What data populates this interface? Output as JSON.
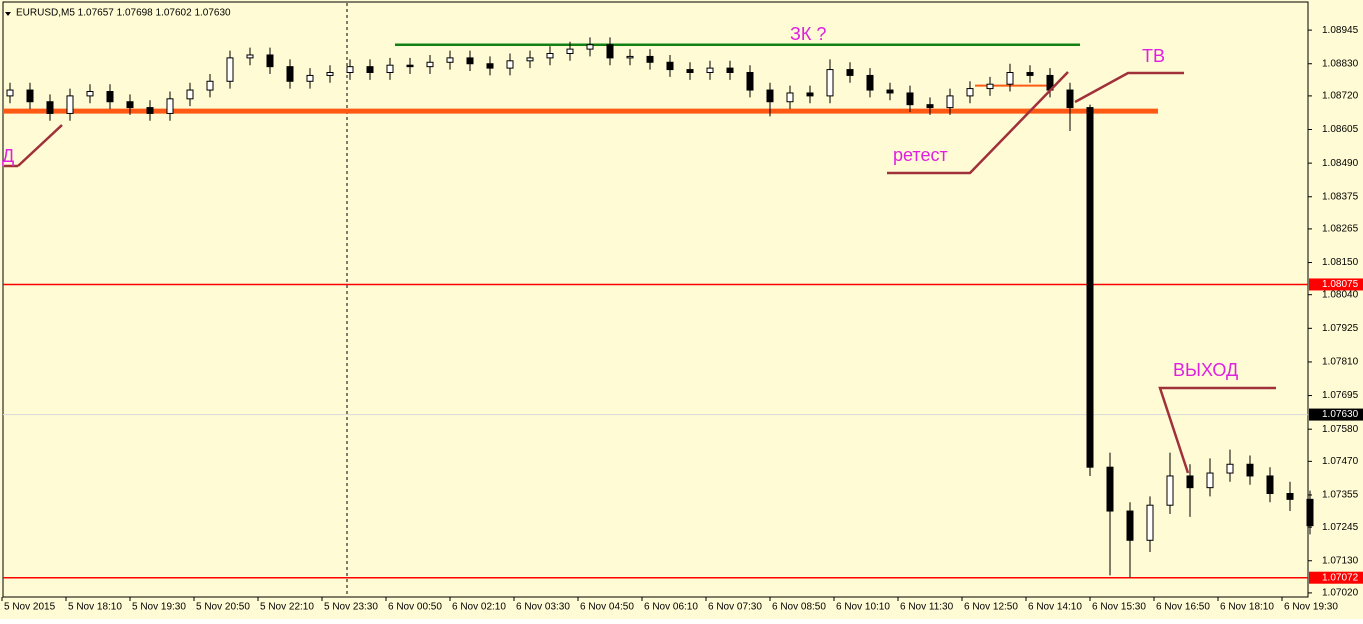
{
  "chart_data": {
    "type": "candlestick",
    "title": "EURUSD,M5  1.07657 1.07698 1.07602 1.07630",
    "x_labels": [
      "5 Nov 2015",
      "5 Nov 18:10",
      "5 Nov 19:30",
      "5 Nov 20:50",
      "5 Nov 22:10",
      "5 Nov 23:30",
      "6 Nov 00:50",
      "6 Nov 02:10",
      "6 Nov 03:30",
      "6 Nov 04:50",
      "6 Nov 06:10",
      "6 Nov 07:30",
      "6 Nov 08:50",
      "6 Nov 10:10",
      "6 Nov 11:30",
      "6 Nov 12:50",
      "6 Nov 14:10",
      "6 Nov 15:30",
      "6 Nov 16:50",
      "6 Nov 18:10",
      "6 Nov 19:30"
    ],
    "open": [
      1.0872,
      1.0874,
      1.087,
      1.0866,
      1.0872,
      1.08735,
      1.087,
      1.0868,
      1.0866,
      1.0871,
      1.0874,
      1.0877,
      1.0885,
      1.0886,
      1.0882,
      1.0877,
      1.0879,
      1.088,
      1.0882,
      1.088,
      1.08825,
      1.0882,
      1.08835,
      1.0885,
      1.0883,
      1.08815,
      1.0884,
      1.0885,
      1.08865,
      1.0888,
      1.08895,
      1.0885,
      1.08855,
      1.08835,
      1.0881,
      1.088,
      1.08815,
      1.088,
      1.0874,
      1.087,
      1.0873,
      1.0872,
      1.0881,
      1.0879,
      1.0874,
      1.0873,
      1.0869,
      1.0868,
      1.0872,
      1.08745,
      1.0876,
      1.088,
      1.0879,
      1.0874,
      1.0868,
      1.0745,
      1.073,
      1.072,
      1.0732,
      1.0742,
      1.0738,
      1.0743,
      1.0746,
      1.0742,
      1.0736,
      1.0734
    ],
    "high": [
      1.08765,
      1.08765,
      1.08725,
      1.08745,
      1.0876,
      1.0876,
      1.08725,
      1.08705,
      1.08735,
      1.08765,
      1.08795,
      1.08875,
      1.08885,
      1.08885,
      1.08845,
      1.08815,
      1.08825,
      1.08845,
      1.08845,
      1.0885,
      1.0885,
      1.0886,
      1.08875,
      1.08875,
      1.08855,
      1.08865,
      1.08875,
      1.0889,
      1.08905,
      1.0892,
      1.0892,
      1.0888,
      1.0888,
      1.0886,
      1.08835,
      1.0884,
      1.0884,
      1.08825,
      1.08765,
      1.08755,
      1.08755,
      1.08845,
      1.08835,
      1.08815,
      1.08765,
      1.08755,
      1.08715,
      1.08745,
      1.0877,
      1.08785,
      1.0883,
      1.08825,
      1.08815,
      1.08765,
      1.0869,
      1.075,
      1.0733,
      1.0735,
      1.075,
      1.0746,
      1.0748,
      1.0751,
      1.0749,
      1.0745,
      1.074,
      1.0737
    ],
    "low": [
      1.08695,
      1.08675,
      1.08635,
      1.08635,
      1.08695,
      1.08675,
      1.08655,
      1.08635,
      1.08635,
      1.08685,
      1.08715,
      1.08745,
      1.08825,
      1.08795,
      1.08745,
      1.08745,
      1.08765,
      1.08775,
      1.08775,
      1.08775,
      1.08795,
      1.08795,
      1.0881,
      1.08805,
      1.0879,
      1.0879,
      1.08815,
      1.08825,
      1.0884,
      1.08855,
      1.08825,
      1.08825,
      1.0881,
      1.08785,
      1.08775,
      1.08775,
      1.08775,
      1.08715,
      1.0865,
      1.08675,
      1.08695,
      1.08695,
      1.08765,
      1.08715,
      1.08705,
      1.08665,
      1.08655,
      1.08655,
      1.08695,
      1.0872,
      1.08735,
      1.08765,
      1.08715,
      1.086,
      1.0742,
      1.0708,
      1.07072,
      1.0716,
      1.0729,
      1.0728,
      1.0735,
      1.074,
      1.0739,
      1.0733,
      1.073,
      1.0722
    ],
    "close": [
      1.0874,
      1.087,
      1.0866,
      1.0872,
      1.08735,
      1.087,
      1.0868,
      1.0866,
      1.0871,
      1.0874,
      1.0877,
      1.0885,
      1.0886,
      1.0882,
      1.0877,
      1.0879,
      1.088,
      1.0882,
      1.088,
      1.08825,
      1.0882,
      1.08835,
      1.0885,
      1.0883,
      1.08815,
      1.0884,
      1.0885,
      1.08865,
      1.0888,
      1.08895,
      1.0885,
      1.08855,
      1.08835,
      1.0881,
      1.088,
      1.08815,
      1.088,
      1.0874,
      1.087,
      1.0873,
      1.0872,
      1.0881,
      1.0879,
      1.0874,
      1.0873,
      1.0869,
      1.0868,
      1.0872,
      1.08745,
      1.0876,
      1.088,
      1.0879,
      1.0874,
      1.0868,
      1.0745,
      1.073,
      1.072,
      1.0732,
      1.0742,
      1.0738,
      1.0743,
      1.0746,
      1.0742,
      1.0736,
      1.0734,
      1.0725
    ],
    "ylim": [
      1.07006,
      1.09048
    ],
    "yticks": [
      {
        "value": 1.08945,
        "label": "1.08945"
      },
      {
        "value": 1.0883,
        "label": "1.08830"
      },
      {
        "value": 1.0872,
        "label": "1.08720"
      },
      {
        "value": 1.08605,
        "label": "1.08605"
      },
      {
        "value": 1.0849,
        "label": "1.08490"
      },
      {
        "value": 1.08375,
        "label": "1.08375"
      },
      {
        "value": 1.08265,
        "label": "1.08265"
      },
      {
        "value": 1.0815,
        "label": "1.08150"
      },
      {
        "value": 1.0804,
        "label": "1.08040"
      },
      {
        "value": 1.07925,
        "label": "1.07925"
      },
      {
        "value": 1.0781,
        "label": "1.07810"
      },
      {
        "value": 1.07695,
        "label": "1.07695"
      },
      {
        "value": 1.0758,
        "label": "1.07580"
      },
      {
        "value": 1.0747,
        "label": "1.07470"
      },
      {
        "value": 1.07355,
        "label": "1.07355"
      },
      {
        "value": 1.07245,
        "label": "1.07245"
      },
      {
        "value": 1.0713,
        "label": "1.07130"
      },
      {
        "value": 1.0702,
        "label": "1.07020"
      }
    ],
    "levels": [
      {
        "value": 1.08895,
        "color": "#128012"
      },
      {
        "value": 1.08668,
        "color": "#ff5a14"
      },
      {
        "value": 1.08755,
        "color": "#ff5a14"
      }
    ],
    "price_labels": [
      {
        "value": 1.08075,
        "label": "1.08075",
        "color": "#ff0000"
      },
      {
        "value": 1.0763,
        "label": "1.07630",
        "color": "#000000"
      },
      {
        "value": 1.07072,
        "label": "1.07072",
        "color": "#ff0000"
      }
    ],
    "annotations": [
      "ЗК ?",
      "ТВ",
      "ретест",
      "ВЫХОД",
      "Д"
    ]
  }
}
